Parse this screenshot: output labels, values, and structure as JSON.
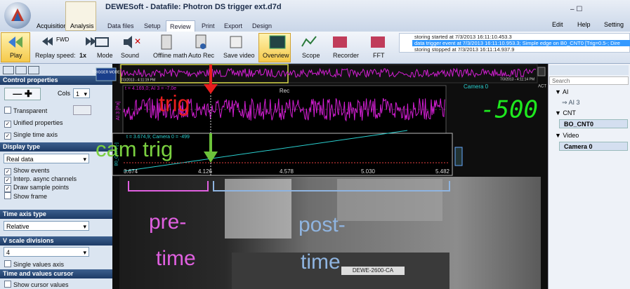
{
  "title_bar": {
    "title": "DEWESoft - Datafile: Photron DS trigger ext.d7d",
    "tabs": [
      "Acquisition",
      "Analysis"
    ],
    "menu": [
      "Data files",
      "Setup",
      "Review",
      "Print",
      "Export",
      "Design"
    ],
    "right_buttons": [
      "Edit",
      "Help",
      "Setting"
    ]
  },
  "toolbar": {
    "play": "Play",
    "replay_speed_label": "Replay speed:",
    "replay_speed": "1x",
    "fwd": "FWD",
    "buttons": [
      "Mode",
      "Sound",
      "Offline math",
      "Auto Rec",
      "Save video",
      "Overview",
      "Scope",
      "Recorder",
      "FFT"
    ],
    "log": [
      "storing started at 7/3/2013 16:11:10.453.3",
      "data trigger event at  7/3/2013 16:11:10.953.3; Simple edge on B0_CNT0 [Trig=0.5-; Dire",
      "storing stopped at 7/3/2013 16:11:14.937.9"
    ]
  },
  "left_panel": {
    "control_properties": "Control properties",
    "cols_label": "Cols",
    "cols_value": "1",
    "transparent": "Transparent",
    "unified_properties": "Unified properties",
    "single_time_axis": "Single time axis",
    "display_type": "Display type",
    "display_type_value": "Real data",
    "options": [
      "Show events",
      "Interp. async channels",
      "Draw sample points",
      "Show frame"
    ],
    "time_axis_type": "Time axis type",
    "time_axis_value": "Relative",
    "v_scale_divisions": "V scale divisions",
    "v_scale_value": "4",
    "single_values_axis": "Single values axis",
    "time_values_cursor": "Time and values cursor",
    "show_cursor_values": "Show cursor values"
  },
  "graph": {
    "trigger_mode": "TRIGGER MODE",
    "overview_start": "7/3/2013 - 4:11:19 PM",
    "overview_end": "7/3/2013 - 4:11:14 PM",
    "cursor1": "t = 4.169,0; AI 3 = -7.0e",
    "rec": "Rec",
    "axis1_label": "AI 3 [Pa]",
    "cursor2": "t = 3.674,9; Camera 0 = -499",
    "axis2_label": "B0_CNT0 [-]",
    "time_ticks": [
      "3.674",
      "4.126",
      "4.578",
      "5.030",
      "5.482"
    ],
    "camera_label": "Camera 0",
    "act": "ACT",
    "digital_value": "-500",
    "camera_tag": "DEWE-2600-CA"
  },
  "annotations": {
    "trig": "trig",
    "cam_trig": "cam trig",
    "pre_time": [
      "pre-",
      "time"
    ],
    "post_time": [
      "post-",
      "time"
    ]
  },
  "right_panel": {
    "search": "Search",
    "tree": [
      "AI",
      "AI 3",
      "CNT",
      "BO_CNT0",
      "Video",
      "Camera 0"
    ]
  }
}
